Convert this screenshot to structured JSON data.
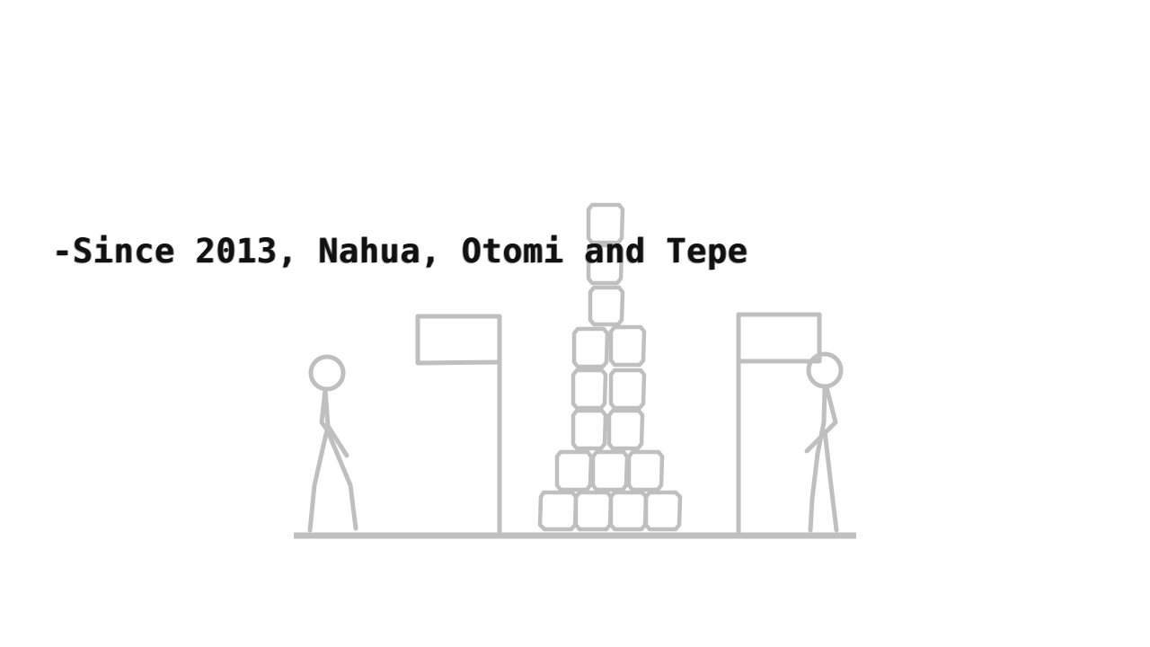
{
  "caption": {
    "text": "-Since 2013, Nahua, Otomi and Tepe"
  },
  "colors": {
    "background": "#ffffff",
    "caption_text": "#111111",
    "drawing_stroke": "#bfbfbf"
  },
  "illustration": {
    "figures": [
      "stick-figure-left",
      "stick-figure-right"
    ],
    "flags": [
      "flag-left",
      "flag-right"
    ],
    "block_pyramid_rows": [
      4,
      3,
      2,
      2,
      2,
      1,
      1,
      1
    ]
  }
}
